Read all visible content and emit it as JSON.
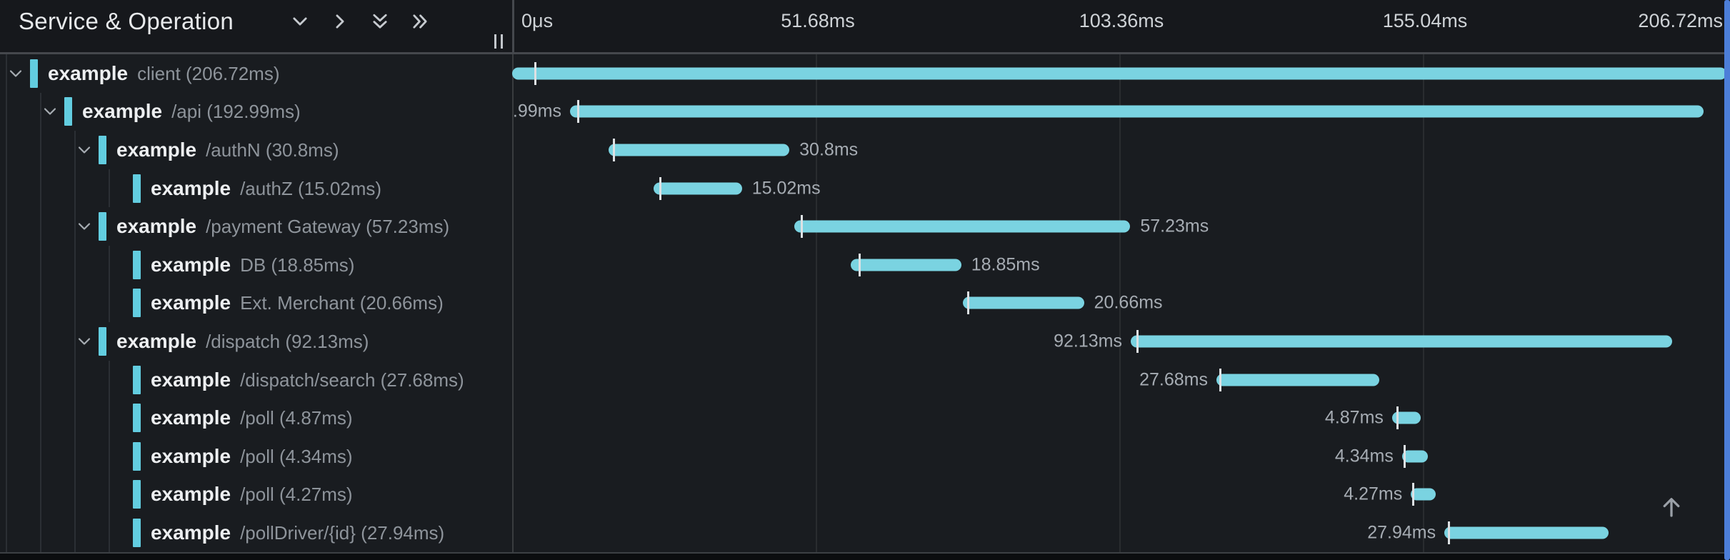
{
  "header": {
    "title": "Service & Operation",
    "controls": [
      {
        "icon": "chevron-down-icon"
      },
      {
        "icon": "chevron-right-icon"
      },
      {
        "icon": "double-chevron-down-icon"
      },
      {
        "icon": "double-chevron-right-icon"
      }
    ],
    "ruler": [
      {
        "label": "0μs",
        "ms": 0,
        "align": "left",
        "grid": true
      },
      {
        "label": "51.68ms",
        "ms": 51.68,
        "align": "center",
        "grid": true
      },
      {
        "label": "103.36ms",
        "ms": 103.36,
        "align": "center",
        "grid": true
      },
      {
        "label": "155.04ms",
        "ms": 155.04,
        "align": "center",
        "grid": true
      },
      {
        "label": "206.72ms",
        "ms": 206.72,
        "align": "right",
        "grid": false
      }
    ]
  },
  "trace": {
    "total_ms": 206.72,
    "spans": [
      {
        "service": "example",
        "operation": "client",
        "duration": "206.72ms",
        "depth": 0,
        "has_children": true,
        "start_ms": 0,
        "duration_ms": 206.72,
        "tick_ms": 3.8,
        "label_side": "none"
      },
      {
        "service": "example",
        "operation": "/api",
        "duration": "192.99ms",
        "depth": 1,
        "has_children": true,
        "start_ms": 9.85,
        "duration_ms": 192.99,
        "tick_ms": 11.1,
        "label_side": "left"
      },
      {
        "service": "example",
        "operation": "/authN",
        "duration": "30.8ms",
        "depth": 2,
        "has_children": true,
        "start_ms": 16.4,
        "duration_ms": 30.8,
        "tick_ms": 17.1,
        "label_side": "right"
      },
      {
        "service": "example",
        "operation": "/authZ",
        "duration": "15.02ms",
        "depth": 3,
        "has_children": false,
        "start_ms": 24.1,
        "duration_ms": 15.02,
        "tick_ms": 25.0,
        "label_side": "right"
      },
      {
        "service": "example",
        "operation": "/payment Gateway",
        "duration": "57.23ms",
        "depth": 2,
        "has_children": true,
        "start_ms": 48.0,
        "duration_ms": 57.23,
        "tick_ms": 49.1,
        "label_side": "right"
      },
      {
        "service": "example",
        "operation": "DB",
        "duration": "18.85ms",
        "depth": 3,
        "has_children": false,
        "start_ms": 57.6,
        "duration_ms": 18.85,
        "tick_ms": 59.0,
        "label_side": "right"
      },
      {
        "service": "example",
        "operation": "Ext. Merchant",
        "duration": "20.66ms",
        "depth": 3,
        "has_children": false,
        "start_ms": 76.7,
        "duration_ms": 20.66,
        "tick_ms": 77.5,
        "label_side": "right"
      },
      {
        "service": "example",
        "operation": "/dispatch",
        "duration": "92.13ms",
        "depth": 2,
        "has_children": true,
        "start_ms": 105.3,
        "duration_ms": 92.13,
        "tick_ms": 106.3,
        "label_side": "left"
      },
      {
        "service": "example",
        "operation": "/dispatch/search",
        "duration": "27.68ms",
        "depth": 3,
        "has_children": false,
        "start_ms": 119.9,
        "duration_ms": 27.68,
        "tick_ms": 120.4,
        "label_side": "left"
      },
      {
        "service": "example",
        "operation": "/poll",
        "duration": "4.87ms",
        "depth": 3,
        "has_children": false,
        "start_ms": 149.8,
        "duration_ms": 4.87,
        "tick_ms": 150.6,
        "label_side": "left"
      },
      {
        "service": "example",
        "operation": "/poll",
        "duration": "4.34ms",
        "depth": 3,
        "has_children": false,
        "start_ms": 151.5,
        "duration_ms": 4.34,
        "tick_ms": 151.8,
        "label_side": "left"
      },
      {
        "service": "example",
        "operation": "/poll",
        "duration": "4.27ms",
        "depth": 3,
        "has_children": false,
        "start_ms": 153.0,
        "duration_ms": 4.27,
        "tick_ms": 153.2,
        "label_side": "left"
      },
      {
        "service": "example",
        "operation": "/pollDriver/{id}",
        "duration": "27.94ms",
        "depth": 3,
        "has_children": false,
        "start_ms": 158.7,
        "duration_ms": 27.94,
        "tick_ms": 159.3,
        "label_side": "left"
      }
    ]
  },
  "icons": {
    "row_expander": "chevron-down-icon",
    "resize_grip": "drag-handle-icon",
    "scroll_top": "arrow-up-icon"
  },
  "colors": {
    "bar": "#7ad3e1",
    "marker": "#62cde0",
    "background": "#191c20",
    "header_background": "#16181c",
    "edge_highlight": "#4c7ed8",
    "tick": "#dde1e4",
    "service_text": "#edeff1",
    "operation_text": "#8e949b"
  }
}
